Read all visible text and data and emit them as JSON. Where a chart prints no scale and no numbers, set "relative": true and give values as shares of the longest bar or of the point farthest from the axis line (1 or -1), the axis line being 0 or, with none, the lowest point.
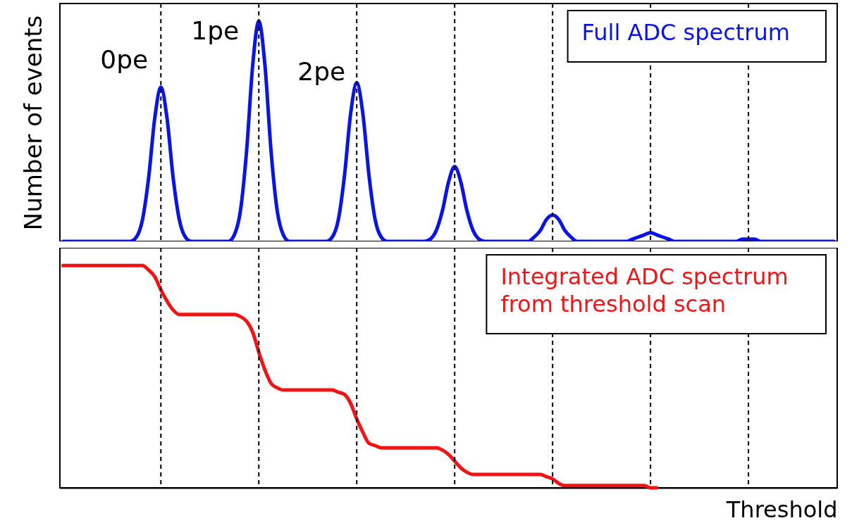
{
  "chart_data": [
    {
      "type": "line",
      "relative": true,
      "ylabel": "Number of events",
      "tick_labels": false,
      "grid": false,
      "legend": "top right",
      "line_style": "solid",
      "categories": [
        null,
        null,
        null,
        null,
        null,
        null,
        null,
        null,
        null,
        null,
        null,
        null,
        null,
        null,
        null,
        null,
        null,
        null,
        null,
        null,
        null,
        null,
        null,
        null,
        null,
        null,
        null,
        null,
        null,
        null,
        null,
        null,
        null,
        null,
        null,
        null,
        null,
        null,
        null,
        null,
        null,
        null,
        null,
        null,
        null,
        null,
        null,
        null,
        null,
        null,
        null,
        null,
        null,
        null,
        null,
        null,
        null,
        null,
        null,
        null,
        null,
        null,
        null,
        null,
        null,
        null,
        null,
        null,
        null,
        null,
        null,
        null,
        null,
        null,
        null,
        null,
        null,
        null,
        null,
        null,
        null,
        null,
        null,
        null,
        null,
        null,
        null,
        null,
        null,
        null,
        null,
        null,
        null,
        null,
        null,
        null,
        null,
        null,
        null,
        null,
        null,
        null,
        null,
        null,
        null,
        null,
        null,
        null,
        null,
        null,
        null,
        null,
        null,
        null,
        null,
        null,
        null,
        null,
        null,
        null,
        null,
        null,
        null,
        null,
        null,
        null,
        null
      ],
      "series": [
        {
          "name": "Full ADC spectrum",
          "color": "#0a14e6",
          "values": [
            0,
            0,
            0,
            0,
            0,
            0,
            0,
            0,
            0,
            0,
            0,
            0,
            0.02,
            0.1,
            0.29,
            0.56,
            0.7,
            0.56,
            0.29,
            0.1,
            0.02,
            0,
            0,
            0,
            0,
            0,
            0,
            0,
            0.03,
            0.14,
            0.41,
            0.8,
            1,
            0.8,
            0.41,
            0.14,
            0.03,
            0,
            0,
            0,
            0,
            0,
            0,
            0,
            0.02,
            0.1,
            0.3,
            0.58,
            0.72,
            0.58,
            0.3,
            0.1,
            0.02,
            0,
            0,
            0,
            0,
            0,
            0,
            0,
            0.01,
            0.05,
            0.14,
            0.27,
            0.34,
            0.27,
            0.14,
            0.05,
            0.01,
            0,
            0,
            0,
            0,
            0,
            0,
            0,
            0,
            0.02,
            0.05,
            0.1,
            0.12,
            0.1,
            0.05,
            0.02,
            0,
            0,
            0,
            0,
            0,
            0,
            0,
            0,
            0,
            0.01,
            0.02,
            0.03,
            0.04,
            0.03,
            0.02,
            0.01,
            0,
            0,
            0,
            0,
            0,
            0,
            0,
            0,
            0,
            0,
            0,
            0.01,
            0.01,
            0.01,
            0,
            0,
            0,
            0,
            0,
            0,
            0,
            0,
            0,
            0,
            0,
            0,
            0
          ]
        }
      ],
      "annotations": [
        "0pe",
        "1pe",
        "2pe"
      ]
    },
    {
      "type": "line",
      "relative": true,
      "xlabel": "Threshold",
      "tick_labels": false,
      "grid": false,
      "legend": "top right",
      "line_style": "solid",
      "categories": [
        null,
        null,
        null,
        null,
        null,
        null,
        null,
        null,
        null,
        null,
        null,
        null,
        null,
        null,
        null,
        null,
        null,
        null,
        null,
        null,
        null,
        null,
        null,
        null,
        null,
        null,
        null,
        null,
        null,
        null,
        null,
        null,
        null,
        null,
        null,
        null,
        null,
        null,
        null,
        null,
        null,
        null,
        null,
        null,
        null,
        null,
        null,
        null,
        null,
        null,
        null,
        null,
        null,
        null,
        null,
        null,
        null,
        null,
        null,
        null,
        null,
        null,
        null,
        null,
        null,
        null,
        null,
        null,
        null,
        null,
        null,
        null,
        null,
        null,
        null,
        null,
        null,
        null,
        null,
        null,
        null,
        null,
        null,
        null,
        null,
        null,
        null,
        null,
        null,
        null,
        null,
        null,
        null,
        null,
        null,
        null,
        null,
        null,
        null,
        null,
        null,
        null,
        null,
        null,
        null,
        null,
        null,
        null,
        null,
        null,
        null,
        null,
        null,
        null,
        null,
        null,
        null,
        null,
        null,
        null,
        null,
        null,
        null,
        null,
        null,
        null,
        null
      ],
      "series": [
        {
          "name": "Integrated ADC spectrum from threshold scan",
          "color": "#f01414",
          "values": [
            1,
            1,
            1,
            1,
            1,
            1,
            1,
            1,
            1,
            1,
            1,
            1,
            1,
            1,
            0.98,
            0.95,
            0.89,
            0.84,
            0.8,
            0.78,
            0.78,
            0.78,
            0.78,
            0.78,
            0.78,
            0.78,
            0.78,
            0.78,
            0.78,
            0.77,
            0.75,
            0.7,
            0.61,
            0.53,
            0.47,
            0.45,
            0.44,
            0.44,
            0.44,
            0.44,
            0.44,
            0.44,
            0.44,
            0.44,
            0.44,
            0.43,
            0.42,
            0.38,
            0.31,
            0.25,
            0.2,
            0.19,
            0.18,
            0.18,
            0.18,
            0.18,
            0.18,
            0.18,
            0.18,
            0.18,
            0.18,
            0.18,
            0.17,
            0.15,
            0.12,
            0.09,
            0.07,
            0.06,
            0.06,
            0.06,
            0.06,
            0.06,
            0.06,
            0.06,
            0.06,
            0.06,
            0.06,
            0.06,
            0.06,
            0.05,
            0.04,
            0.02,
            0.01,
            0.01,
            0.01,
            0.01,
            0.01,
            0.01,
            0.01,
            0.01,
            0.01,
            0.01,
            0.01,
            0.01,
            0.01,
            0.01,
            0,
            0,
            null,
            null,
            null,
            null,
            null,
            null,
            null,
            null,
            null,
            null,
            null,
            null,
            null,
            null,
            null,
            null,
            null,
            null,
            null,
            null,
            null,
            null,
            null,
            null,
            null,
            null,
            null,
            null,
            null
          ]
        }
      ]
    }
  ]
}
